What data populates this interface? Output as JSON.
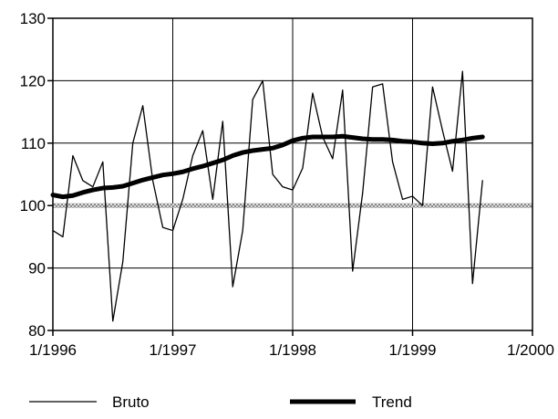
{
  "chart_data": {
    "type": "line",
    "x_type": "date",
    "xlim": [
      "1996-01",
      "2000-01"
    ],
    "ylim": [
      80,
      130
    ],
    "x_ticks": [
      {
        "value": "1996-01",
        "label": "1/1996"
      },
      {
        "value": "1997-01",
        "label": "1/1997"
      },
      {
        "value": "1998-01",
        "label": "1/1998"
      },
      {
        "value": "1999-01",
        "label": "1/1999"
      },
      {
        "value": "2000-01",
        "label": "1/2000"
      }
    ],
    "y_ticks": [
      80,
      90,
      100,
      110,
      120,
      130
    ],
    "grid": true,
    "legend_position": "bottom",
    "reference_line": {
      "y": 100,
      "style": "hatched"
    },
    "x": [
      "1996-01",
      "1996-02",
      "1996-03",
      "1996-04",
      "1996-05",
      "1996-06",
      "1996-07",
      "1996-08",
      "1996-09",
      "1996-10",
      "1996-11",
      "1996-12",
      "1997-01",
      "1997-02",
      "1997-03",
      "1997-04",
      "1997-05",
      "1997-06",
      "1997-07",
      "1997-08",
      "1997-09",
      "1997-10",
      "1997-11",
      "1997-12",
      "1998-01",
      "1998-02",
      "1998-03",
      "1998-04",
      "1998-05",
      "1998-06",
      "1998-07",
      "1998-08",
      "1998-09",
      "1998-10",
      "1998-11",
      "1998-12",
      "1999-01",
      "1999-02",
      "1999-03",
      "1999-04",
      "1999-05",
      "1999-06",
      "1999-07",
      "1999-08"
    ],
    "series": [
      {
        "name": "Bruto",
        "style": "thin",
        "color": "#000000",
        "values": [
          96,
          95,
          108,
          104,
          103,
          107,
          81.5,
          91,
          110,
          116,
          104,
          96.5,
          96,
          101,
          108,
          112,
          101,
          113.5,
          87,
          96,
          117,
          120,
          105,
          103,
          102.5,
          106,
          118,
          111,
          107.5,
          118.5,
          89.5,
          102,
          119,
          119.5,
          107,
          101,
          101.5,
          100,
          119,
          112,
          105.5,
          121.5,
          87.5,
          104
        ]
      },
      {
        "name": "Trend",
        "style": "thick",
        "color": "#000000",
        "values": [
          101.7,
          101.4,
          101.6,
          102.1,
          102.5,
          102.8,
          102.9,
          103.1,
          103.6,
          104.1,
          104.5,
          104.9,
          105.1,
          105.4,
          105.9,
          106.3,
          106.8,
          107.3,
          108.0,
          108.5,
          108.8,
          109.0,
          109.2,
          109.7,
          110.4,
          110.8,
          111.0,
          111.0,
          111.0,
          111.1,
          110.9,
          110.7,
          110.6,
          110.6,
          110.5,
          110.3,
          110.2,
          110.0,
          109.9,
          110.0,
          110.3,
          110.5,
          110.8,
          111.0
        ]
      }
    ]
  }
}
